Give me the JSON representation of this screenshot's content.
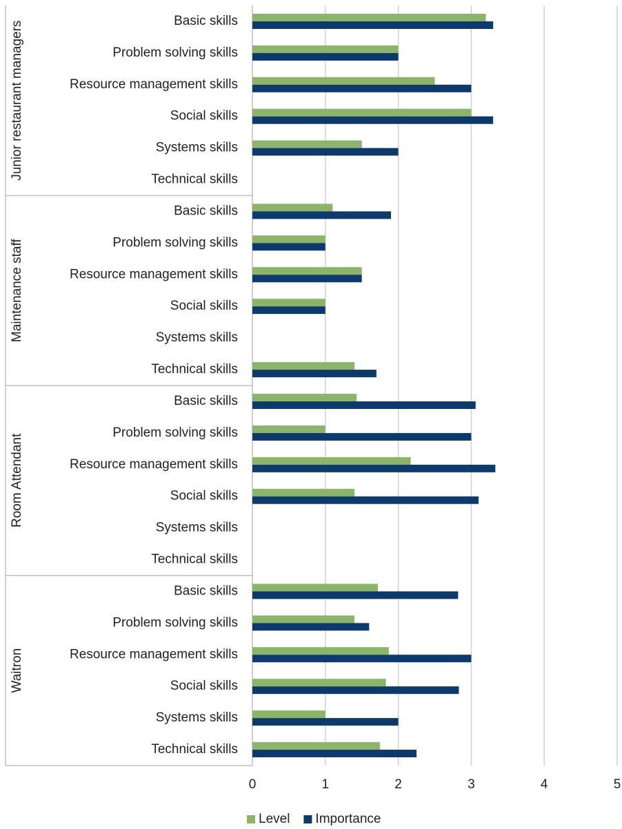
{
  "chart_data": {
    "type": "bar",
    "orientation": "horizontal",
    "groups": [
      {
        "name": "Junior restaurant managers",
        "categories": [
          "Basic skills",
          "Problem solving skills",
          "Resource management skills",
          "Social skills",
          "Systems skills",
          "Technical skills"
        ]
      },
      {
        "name": "Maintenance staff",
        "categories": [
          "Basic skills",
          "Problem solving skills",
          "Resource management skills",
          "Social skills",
          "Systems skills",
          "Technical skills"
        ]
      },
      {
        "name": "Room Attendant",
        "categories": [
          "Basic skills",
          "Problem solving skills",
          "Resource management skills",
          "Social skills",
          "Systems skills",
          "Technical skills"
        ]
      },
      {
        "name": "Waitron",
        "categories": [
          "Basic skills",
          "Problem solving skills",
          "Resource management skills",
          "Social skills",
          "Systems skills",
          "Technical skills"
        ]
      }
    ],
    "series": [
      {
        "name": "Level",
        "color": "#8cb56b",
        "values": [
          3.2,
          2,
          2.5,
          3,
          1.5,
          null,
          1.1,
          1,
          1.5,
          1,
          null,
          1.4,
          1.43,
          1,
          2.17,
          1.4,
          null,
          null,
          1.72,
          1.4,
          1.87,
          1.83,
          1,
          1.75
        ]
      },
      {
        "name": "Importance",
        "color": "#0d3a6b",
        "values": [
          3.3,
          2,
          3,
          3.3,
          2,
          null,
          1.9,
          1,
          1.5,
          1,
          null,
          1.7,
          3.06,
          3,
          3.33,
          3.1,
          null,
          null,
          2.82,
          1.6,
          3,
          2.83,
          2,
          2.25
        ]
      }
    ],
    "xlim": [
      0,
      5
    ],
    "xticks": [
      0,
      1,
      2,
      3,
      4,
      5
    ],
    "grid": true,
    "legend": "bottom"
  }
}
